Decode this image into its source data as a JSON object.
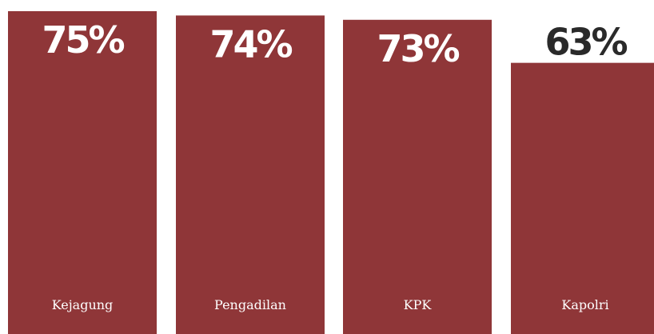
{
  "chart_data": {
    "type": "bar",
    "categories": [
      "Kejagung",
      "Pengadilan",
      "KPK",
      "Kapolri"
    ],
    "values": [
      75,
      74,
      73,
      63
    ],
    "value_labels": [
      "75%",
      "74%",
      "73%",
      "63%"
    ],
    "title": "",
    "xlabel": "",
    "ylabel": "",
    "grid": false,
    "legend": "none",
    "colors": {
      "bar": "#8f3638",
      "label_on_bar": "#ffffff",
      "label_above_bar": "#2a2a2a"
    }
  }
}
